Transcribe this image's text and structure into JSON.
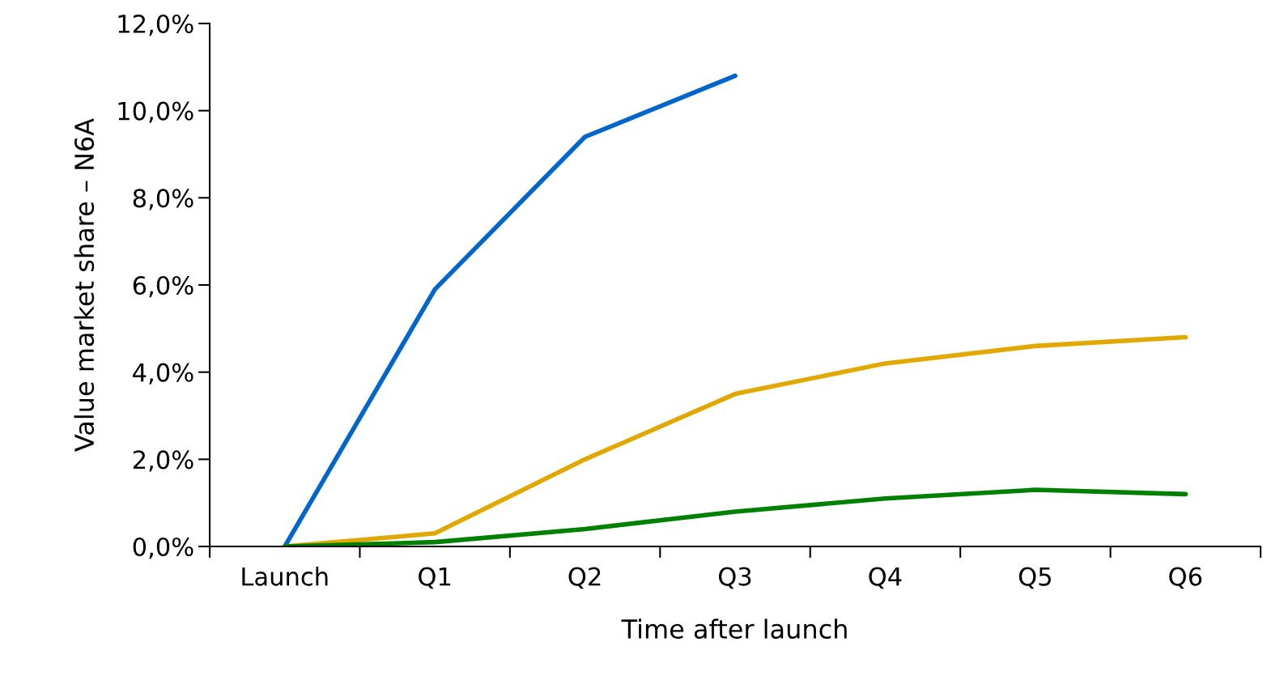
{
  "chart_data": {
    "type": "line",
    "xlabel": "Time after launch",
    "ylabel": "Value market share – N6A",
    "categories": [
      "Launch",
      "Q1",
      "Q2",
      "Q3",
      "Q4",
      "Q5",
      "Q6"
    ],
    "series": [
      {
        "color": "#0066cc",
        "values": [
          0,
          5.9,
          9.4,
          10.8,
          null,
          null,
          null
        ]
      },
      {
        "color": "#e0a800",
        "values": [
          0,
          0.3,
          2.0,
          3.5,
          4.2,
          4.6,
          4.8
        ]
      },
      {
        "color": "#008000",
        "values": [
          0,
          0.1,
          0.4,
          0.8,
          1.1,
          1.3,
          1.2
        ]
      }
    ],
    "ylim": [
      0,
      12
    ],
    "yticks": [
      {
        "value": 0,
        "label": "0,0%"
      },
      {
        "value": 2,
        "label": "2,0%"
      },
      {
        "value": 4,
        "label": "4,0%"
      },
      {
        "value": 6,
        "label": "6,0%"
      },
      {
        "value": 8,
        "label": "8,0%"
      },
      {
        "value": 10,
        "label": "10,0%"
      },
      {
        "value": 12,
        "label": "12,0%"
      }
    ],
    "grid": false,
    "legend": false,
    "marker": "none",
    "line_style": "solid"
  }
}
